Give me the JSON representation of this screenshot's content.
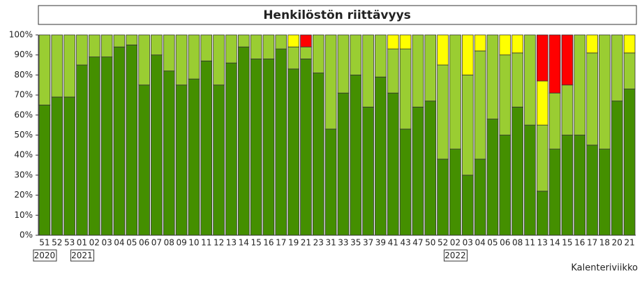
{
  "chart_data": {
    "type": "stacked_bar",
    "title": "Henkilöstön riittävyys",
    "x_label": "Kalenteriviikko",
    "categories": [
      "51",
      "52",
      "53",
      "01",
      "02",
      "03",
      "04",
      "05",
      "06",
      "07",
      "08",
      "09",
      "10",
      "11",
      "12",
      "13",
      "14",
      "15",
      "16",
      "17",
      "19",
      "21",
      "23",
      "31",
      "33",
      "35",
      "37",
      "39",
      "41",
      "43",
      "47",
      "50",
      "52",
      "02",
      "03",
      "04",
      "05",
      "06",
      "08",
      "11",
      "13",
      "14",
      "15",
      "16",
      "17",
      "18",
      "20",
      "21"
    ],
    "years": [
      "2020",
      null,
      null,
      "2021",
      null,
      null,
      null,
      null,
      null,
      null,
      null,
      null,
      null,
      null,
      null,
      null,
      null,
      null,
      null,
      null,
      null,
      null,
      null,
      null,
      null,
      null,
      null,
      null,
      null,
      null,
      null,
      null,
      null,
      "2022",
      null,
      null,
      null,
      null,
      null,
      null,
      null,
      null,
      null,
      null,
      null,
      null,
      null,
      null
    ],
    "series": [
      {
        "color": "#448f00",
        "values": [
          65,
          69,
          69,
          85,
          89,
          89,
          94,
          95,
          75,
          90,
          82,
          75,
          78,
          87,
          75,
          86,
          94,
          88,
          88,
          93,
          83,
          88,
          81,
          53,
          71,
          80,
          64,
          79,
          71,
          53,
          64,
          67,
          38,
          43,
          30,
          38,
          58,
          50,
          64,
          55,
          22,
          43,
          50,
          50,
          45,
          43,
          67,
          73
        ]
      },
      {
        "color": "#9acd32",
        "values": [
          35,
          31,
          31,
          15,
          11,
          11,
          6,
          5,
          25,
          10,
          18,
          25,
          22,
          13,
          25,
          14,
          6,
          12,
          12,
          7,
          11,
          6,
          19,
          47,
          29,
          20,
          36,
          21,
          22,
          40,
          36,
          33,
          47,
          57,
          50,
          54,
          42,
          40,
          27,
          45,
          33,
          28,
          25,
          50,
          46,
          57,
          33,
          18
        ]
      },
      {
        "color": "#ffff00",
        "values": [
          0,
          0,
          0,
          0,
          0,
          0,
          0,
          0,
          0,
          0,
          0,
          0,
          0,
          0,
          0,
          0,
          0,
          0,
          0,
          0,
          6,
          0,
          0,
          0,
          0,
          0,
          0,
          0,
          7,
          7,
          0,
          0,
          15,
          0,
          20,
          8,
          0,
          10,
          9,
          0,
          22,
          0,
          0,
          0,
          9,
          0,
          0,
          9
        ]
      },
      {
        "color": "#ff0000",
        "values": [
          0,
          0,
          0,
          0,
          0,
          0,
          0,
          0,
          0,
          0,
          0,
          0,
          0,
          0,
          0,
          0,
          0,
          0,
          0,
          0,
          0,
          6,
          0,
          0,
          0,
          0,
          0,
          0,
          0,
          0,
          0,
          0,
          0,
          0,
          0,
          0,
          0,
          0,
          0,
          0,
          23,
          29,
          25,
          0,
          0,
          0,
          0,
          0
        ]
      }
    ],
    "ylim": [
      0,
      100
    ],
    "yticks": [
      {
        "value": 0,
        "label": "0%"
      },
      {
        "value": 10,
        "label": "10%"
      },
      {
        "value": 20,
        "label": "20%"
      },
      {
        "value": 30,
        "label": "30%"
      },
      {
        "value": 40,
        "label": "40%"
      },
      {
        "value": 50,
        "label": "50%"
      },
      {
        "value": 60,
        "label": "60%"
      },
      {
        "value": 70,
        "label": "70%"
      },
      {
        "value": 80,
        "label": "80%"
      },
      {
        "value": 90,
        "label": "90%"
      },
      {
        "value": 100,
        "label": "100%"
      }
    ]
  }
}
